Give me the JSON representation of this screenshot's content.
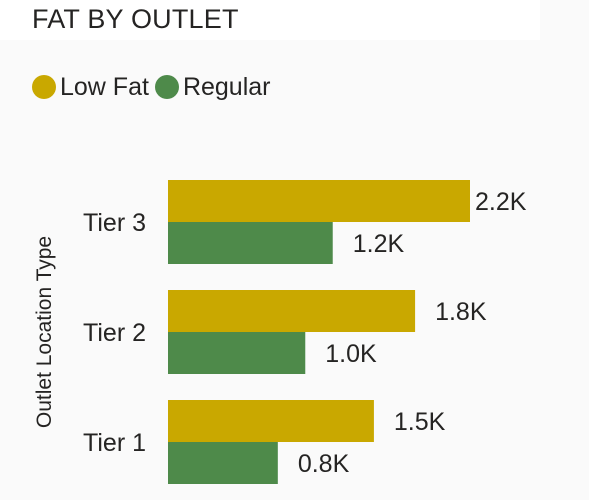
{
  "title": "FAT BY OUTLET",
  "legend": [
    {
      "name": "Low Fat",
      "color": "#C9A800"
    },
    {
      "name": "Regular",
      "color": "#4E8A4A"
    }
  ],
  "chart_data": {
    "type": "bar",
    "orientation": "horizontal",
    "title": "FAT BY OUTLET",
    "ylabel": "Outlet Location Type",
    "xlabel": "",
    "categories": [
      "Tier 3",
      "Tier 2",
      "Tier 1"
    ],
    "series": [
      {
        "name": "Low Fat",
        "values": [
          2200,
          1800,
          1500
        ],
        "labels": [
          "2.2K",
          "1.8K",
          "1.5K"
        ],
        "color": "#C9A800"
      },
      {
        "name": "Regular",
        "values": [
          1200,
          1000,
          800
        ],
        "labels": [
          "1.2K",
          "1.0K",
          "0.8K"
        ],
        "color": "#4E8A4A"
      }
    ],
    "xlim": [
      0,
      2200
    ],
    "grid": false,
    "legend_position": "top-left"
  }
}
